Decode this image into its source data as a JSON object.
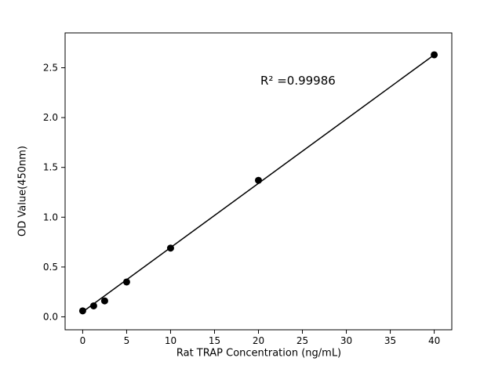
{
  "chart_data": {
    "type": "scatter",
    "title": "",
    "xlabel": "Rat TRAP Concentration (ng/mL)",
    "ylabel": "OD Value(450nm)",
    "x": [
      0,
      1.25,
      2.5,
      5,
      10,
      20,
      40
    ],
    "y": [
      0.06,
      0.11,
      0.16,
      0.35,
      0.69,
      1.37,
      2.63
    ],
    "fit_line": {
      "x": [
        0,
        40
      ],
      "y": [
        0.05,
        2.63
      ]
    },
    "annotation": {
      "text": "R² =0.99986",
      "x": 24.5,
      "y": 2.37
    },
    "xlim": [
      -2,
      42
    ],
    "ylim": [
      -0.13,
      2.85
    ],
    "xticks": [
      0,
      5,
      10,
      15,
      20,
      25,
      30,
      35,
      40
    ],
    "xtick_labels": [
      "0",
      "5",
      "10",
      "15",
      "20",
      "25",
      "30",
      "35",
      "40"
    ],
    "yticks": [
      0.0,
      0.5,
      1.0,
      1.5,
      2.0,
      2.5
    ],
    "ytick_labels": [
      "0.0",
      "0.5",
      "1.0",
      "1.5",
      "2.0",
      "2.5"
    ],
    "marker_color": "#000000",
    "line_color": "#000000",
    "axis_color": "#000000",
    "grid": false,
    "legend": null
  }
}
